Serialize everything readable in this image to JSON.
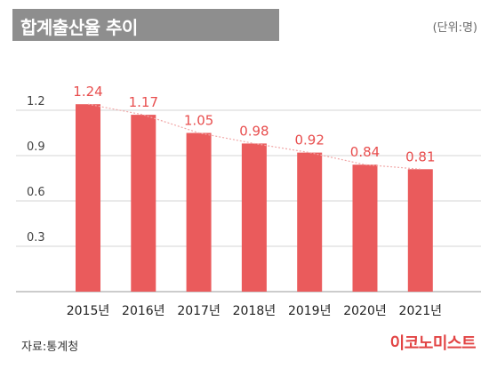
{
  "header": {
    "title": "합계출산율 추이",
    "unit": "(단위:명)"
  },
  "footer": {
    "source": "자료:통계청",
    "brand": "이코노미스트"
  },
  "colors": {
    "bar": "#ea5b5c",
    "value_label": "#e84e4e",
    "trend_line": "#f1a7a7",
    "title_bar": "#8e8e8e"
  },
  "chart_data": {
    "type": "bar",
    "categories": [
      "2015년",
      "2016년",
      "2017년",
      "2018년",
      "2019년",
      "2020년",
      "2021년"
    ],
    "values": [
      1.24,
      1.17,
      1.05,
      0.98,
      0.92,
      0.84,
      0.81
    ],
    "value_labels": [
      "1.24",
      "1.17",
      "1.05",
      "0.98",
      "0.92",
      "0.84",
      "0.81"
    ],
    "yticks": [
      0.3,
      0.6,
      0.9,
      1.2
    ],
    "ytick_labels": [
      "0.3",
      "0.6",
      "0.9",
      "1.2"
    ],
    "ylim": [
      0,
      1.4
    ],
    "grid": "horizontal",
    "trend_line": "dotted"
  }
}
